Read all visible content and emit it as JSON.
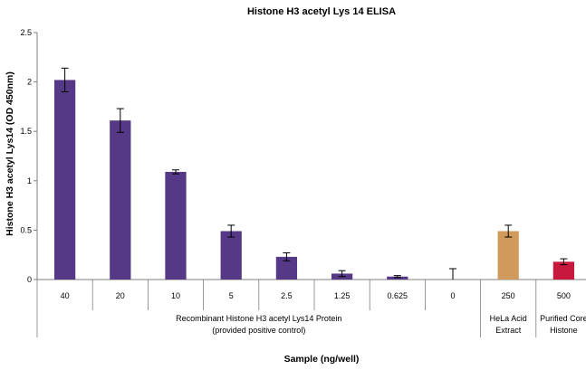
{
  "chart_data": {
    "type": "bar",
    "title": "Histone H3 acetyl Lys 14 ELISA",
    "xlabel": "Sample (ng/well)",
    "ylabel": "Histone H3 acetyl Lys14 (OD 450nm)",
    "ylim": [
      0,
      2.5
    ],
    "yticks": [
      "0",
      "0.5",
      "1",
      "1.5",
      "2",
      "2.5"
    ],
    "grid": false,
    "categories": [
      "40",
      "20",
      "10",
      "5",
      "2.5",
      "1.25",
      "0.625",
      "0",
      "250",
      "500"
    ],
    "values": [
      2.02,
      1.61,
      1.09,
      0.49,
      0.23,
      0.06,
      0.03,
      0.0,
      0.49,
      0.18
    ],
    "errors": [
      0.12,
      0.12,
      0.02,
      0.06,
      0.04,
      0.03,
      0.01,
      0.11,
      0.06,
      0.03
    ],
    "colors": [
      "#553986",
      "#553986",
      "#553986",
      "#553986",
      "#553986",
      "#553986",
      "#553986",
      "#553986",
      "#d09a5c",
      "#c8183e"
    ],
    "groups": [
      {
        "label_line1": "Recombinant Histone H3 acetyl Lys14 Protein",
        "label_line2": "(provided positive control)",
        "count": 8
      },
      {
        "label_line1": "HeLa Acid",
        "label_line2": "Extract",
        "count": 1
      },
      {
        "label_line1": "Purified Core",
        "label_line2": "Histone",
        "count": 1
      }
    ]
  }
}
